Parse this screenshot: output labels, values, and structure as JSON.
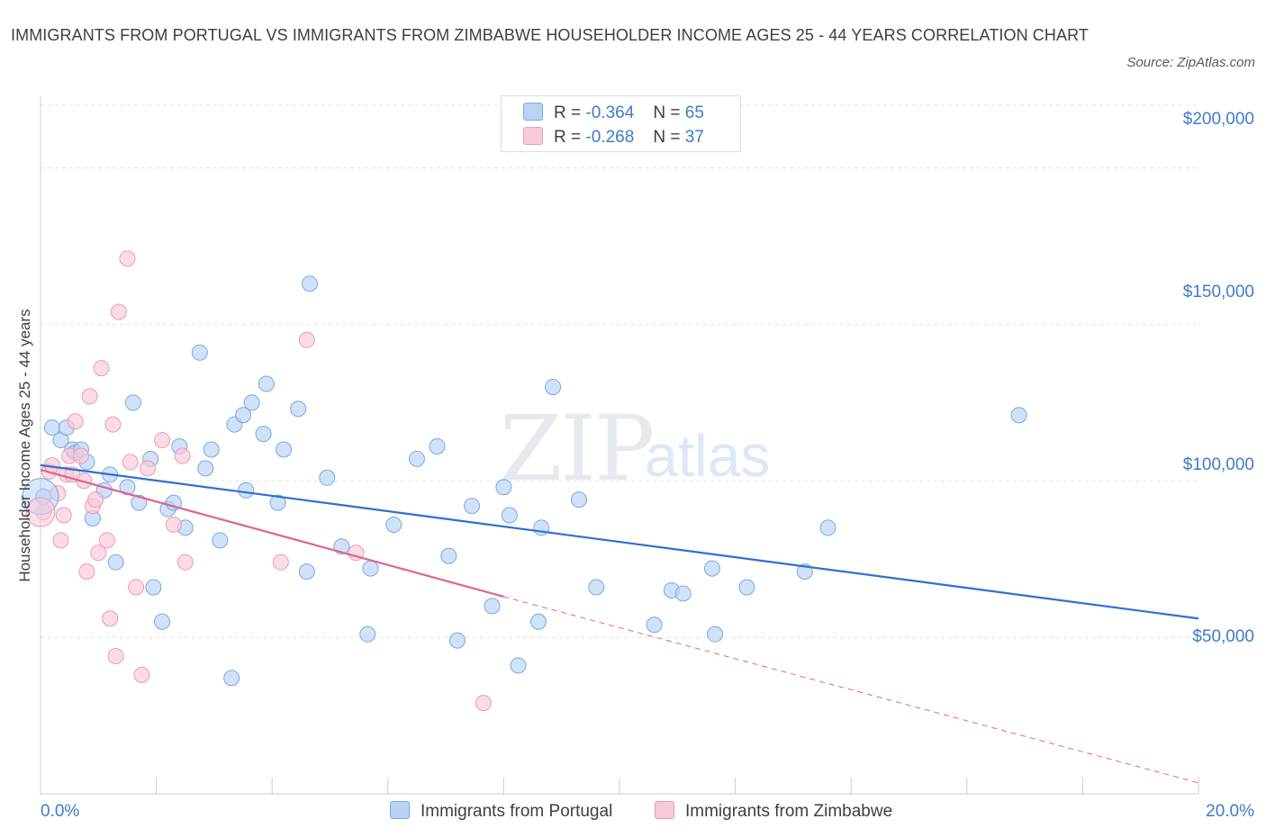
{
  "header": {
    "title": "IMMIGRANTS FROM PORTUGAL VS IMMIGRANTS FROM ZIMBABWE HOUSEHOLDER INCOME AGES 25 - 44 YEARS CORRELATION CHART",
    "source": "Source: ZipAtlas.com"
  },
  "legend": {
    "rows": [
      {
        "r_label": "R =",
        "r_value": "-0.364",
        "n_label": "N =",
        "n_value": "65"
      },
      {
        "r_label": "R =",
        "r_value": "-0.268",
        "n_label": "N =",
        "n_value": "37"
      }
    ]
  },
  "watermark": {
    "zip": "ZIP",
    "atlas": "atlas"
  },
  "colors": {
    "blue_fill": "#b9d3f5",
    "blue_stroke": "#7aa7e0",
    "blue_line": "#2f6fcf",
    "pink_fill": "#f9c9d8",
    "pink_stroke": "#eb9ab5",
    "pink_line": "#e06390",
    "grid": "#dfe3e8",
    "tick_text": "#3d7cc9"
  },
  "chart_data": {
    "type": "scatter",
    "title": "IMMIGRANTS FROM PORTUGAL VS IMMIGRANTS FROM ZIMBABWE HOUSEHOLDER INCOME AGES 25 - 44 YEARS CORRELATION CHART",
    "xlabel": "",
    "ylabel": "Householder Income Ages 25 - 44 years",
    "xlim": [
      0,
      20
    ],
    "ylim": [
      0,
      200000
    ],
    "x_tick_labels": [
      "0.0%",
      "20.0%"
    ],
    "y_ticks": [
      50000,
      100000,
      150000,
      200000
    ],
    "y_tick_labels": [
      "$50,000",
      "$100,000",
      "$150,000",
      "$200,000"
    ],
    "grid": true,
    "legend_position": "top-center",
    "series": [
      {
        "name": "Immigrants from Portugal",
        "color": "#b9d3f5",
        "points": [
          [
            0.05,
            95000
          ],
          [
            0.2,
            117000
          ],
          [
            0.35,
            113000
          ],
          [
            0.45,
            117000
          ],
          [
            0.55,
            110000
          ],
          [
            0.6,
            109000
          ],
          [
            0.7,
            110000
          ],
          [
            0.8,
            106000
          ],
          [
            0.9,
            88000
          ],
          [
            1.1,
            97000
          ],
          [
            1.2,
            102000
          ],
          [
            1.3,
            74000
          ],
          [
            1.5,
            98000
          ],
          [
            1.6,
            125000
          ],
          [
            1.7,
            93000
          ],
          [
            1.9,
            107000
          ],
          [
            1.95,
            66000
          ],
          [
            2.1,
            55000
          ],
          [
            2.2,
            91000
          ],
          [
            2.3,
            93000
          ],
          [
            2.4,
            111000
          ],
          [
            2.5,
            85000
          ],
          [
            2.75,
            141000
          ],
          [
            2.85,
            104000
          ],
          [
            2.95,
            110000
          ],
          [
            3.1,
            81000
          ],
          [
            3.3,
            37000
          ],
          [
            3.35,
            118000
          ],
          [
            3.5,
            121000
          ],
          [
            3.55,
            97000
          ],
          [
            3.65,
            125000
          ],
          [
            3.85,
            115000
          ],
          [
            3.9,
            131000
          ],
          [
            4.1,
            93000
          ],
          [
            4.2,
            110000
          ],
          [
            4.45,
            123000
          ],
          [
            4.6,
            71000
          ],
          [
            4.65,
            163000
          ],
          [
            4.95,
            101000
          ],
          [
            5.2,
            79000
          ],
          [
            5.65,
            51000
          ],
          [
            5.7,
            72000
          ],
          [
            6.1,
            86000
          ],
          [
            6.5,
            107000
          ],
          [
            6.85,
            111000
          ],
          [
            7.05,
            76000
          ],
          [
            7.2,
            49000
          ],
          [
            7.45,
            92000
          ],
          [
            7.8,
            60000
          ],
          [
            8.0,
            98000
          ],
          [
            8.1,
            89000
          ],
          [
            8.25,
            41000
          ],
          [
            8.6,
            55000
          ],
          [
            8.65,
            85000
          ],
          [
            8.85,
            130000
          ],
          [
            9.3,
            94000
          ],
          [
            9.6,
            66000
          ],
          [
            10.6,
            54000
          ],
          [
            10.9,
            65000
          ],
          [
            11.1,
            64000
          ],
          [
            11.6,
            72000
          ],
          [
            11.65,
            51000
          ],
          [
            12.2,
            66000
          ],
          [
            13.2,
            71000
          ],
          [
            13.6,
            85000
          ],
          [
            16.9,
            121000
          ]
        ]
      },
      {
        "name": "Immigrants from Zimbabwe",
        "color": "#f9c9d8",
        "points": [
          [
            0.05,
            90000
          ],
          [
            0.15,
            103000
          ],
          [
            0.2,
            105000
          ],
          [
            0.3,
            96000
          ],
          [
            0.35,
            81000
          ],
          [
            0.4,
            89000
          ],
          [
            0.45,
            102000
          ],
          [
            0.5,
            108000
          ],
          [
            0.55,
            102000
          ],
          [
            0.6,
            119000
          ],
          [
            0.7,
            108000
          ],
          [
            0.75,
            100000
          ],
          [
            0.8,
            71000
          ],
          [
            0.85,
            127000
          ],
          [
            0.9,
            92000
          ],
          [
            0.95,
            94000
          ],
          [
            1.0,
            77000
          ],
          [
            1.05,
            136000
          ],
          [
            1.15,
            81000
          ],
          [
            1.2,
            56000
          ],
          [
            1.25,
            118000
          ],
          [
            1.3,
            44000
          ],
          [
            1.35,
            154000
          ],
          [
            1.5,
            171000
          ],
          [
            1.55,
            106000
          ],
          [
            1.65,
            66000
          ],
          [
            1.75,
            38000
          ],
          [
            1.85,
            104000
          ],
          [
            2.1,
            113000
          ],
          [
            2.3,
            86000
          ],
          [
            2.45,
            108000
          ],
          [
            2.5,
            74000
          ],
          [
            4.15,
            74000
          ],
          [
            4.6,
            145000
          ],
          [
            5.45,
            77000
          ],
          [
            7.65,
            29000
          ]
        ]
      }
    ],
    "trend_lines": [
      {
        "series": "Immigrants from Portugal",
        "x": [
          0,
          20
        ],
        "y": [
          105000,
          56000
        ],
        "style": "solid"
      },
      {
        "series": "Immigrants from Zimbabwe",
        "x": [
          0,
          8
        ],
        "y": [
          103500,
          63000
        ],
        "style": "solid"
      },
      {
        "series": "Immigrants from Zimbabwe",
        "x": [
          8,
          20
        ],
        "y": [
          63000,
          3500
        ],
        "style": "dashed"
      }
    ]
  }
}
